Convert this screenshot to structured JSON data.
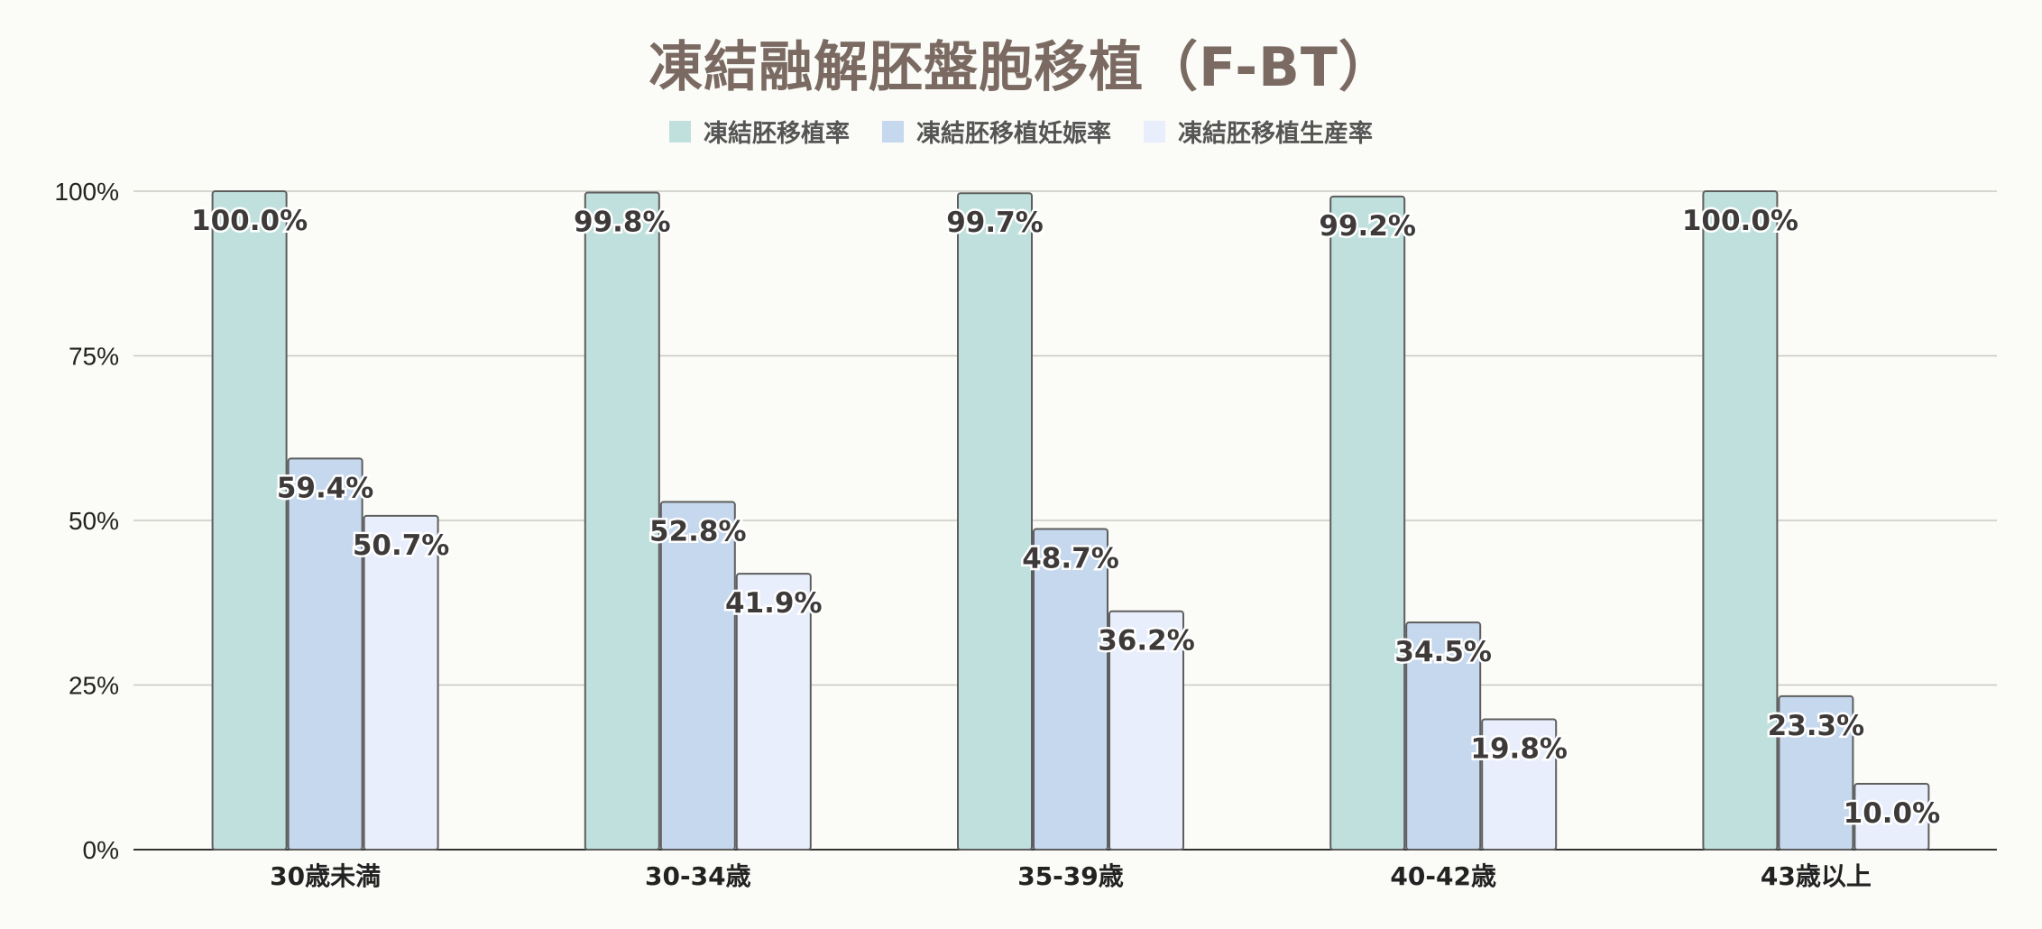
{
  "title": "凍結融解胚盤胞移植（F-BT）",
  "chart_data": {
    "type": "bar",
    "title": "凍結融解胚盤胞移植（F-BT）",
    "categories": [
      "30歳未満",
      "30-34歳",
      "35-39歳",
      "40-42歳",
      "43歳以上"
    ],
    "series": [
      {
        "name": "凍結胚移植率",
        "color": "#bfe0dd",
        "values": [
          100.0,
          99.8,
          99.7,
          99.2,
          100.0
        ]
      },
      {
        "name": "凍結胚移植妊娠率",
        "color": "#c5d8ee",
        "values": [
          59.4,
          52.8,
          48.7,
          34.5,
          23.3
        ]
      },
      {
        "name": "凍結胚移植生産率",
        "color": "#e8eefc",
        "values": [
          50.7,
          41.9,
          36.2,
          19.8,
          10.0
        ]
      }
    ],
    "data_labels": [
      [
        "100.0%",
        "99.8%",
        "99.7%",
        "99.2%",
        "100.0%"
      ],
      [
        "59.4%",
        "52.8%",
        "48.7%",
        "34.5%",
        "23.3%"
      ],
      [
        "50.7%",
        "41.9%",
        "36.2%",
        "19.8%",
        "10.0%"
      ]
    ],
    "y_ticks": [
      "0%",
      "25%",
      "50%",
      "75%",
      "100%"
    ],
    "ylim": [
      0,
      100
    ],
    "grid": true,
    "legend_position": "top-center",
    "xlabel": "",
    "ylabel": ""
  }
}
